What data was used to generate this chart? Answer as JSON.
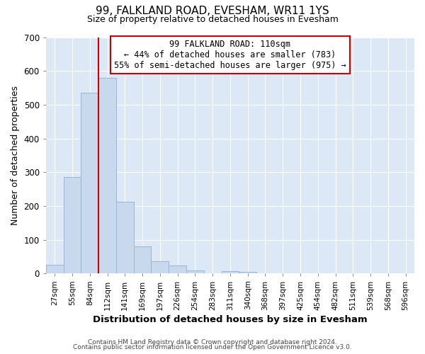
{
  "title": "99, FALKLAND ROAD, EVESHAM, WR11 1YS",
  "subtitle": "Size of property relative to detached houses in Evesham",
  "xlabel": "Distribution of detached houses by size in Evesham",
  "ylabel": "Number of detached properties",
  "bin_labels": [
    "27sqm",
    "55sqm",
    "84sqm",
    "112sqm",
    "141sqm",
    "169sqm",
    "197sqm",
    "226sqm",
    "254sqm",
    "283sqm",
    "311sqm",
    "340sqm",
    "368sqm",
    "397sqm",
    "425sqm",
    "454sqm",
    "482sqm",
    "511sqm",
    "539sqm",
    "568sqm",
    "596sqm"
  ],
  "bar_heights": [
    25,
    285,
    535,
    580,
    212,
    80,
    37,
    24,
    10,
    0,
    8,
    5,
    0,
    0,
    0,
    0,
    0,
    0,
    0,
    0,
    0
  ],
  "bar_color": "#c8d9ee",
  "bar_edge_color": "#9ab5d5",
  "vline_color": "#cc0000",
  "vline_x_index": 3,
  "annotation_title": "99 FALKLAND ROAD: 110sqm",
  "annotation_line1": "← 44% of detached houses are smaller (783)",
  "annotation_line2": "55% of semi-detached houses are larger (975) →",
  "annotation_box_color": "#ffffff",
  "annotation_box_edge": "#cc0000",
  "ylim": [
    0,
    700
  ],
  "yticks": [
    0,
    100,
    200,
    300,
    400,
    500,
    600,
    700
  ],
  "footer1": "Contains HM Land Registry data © Crown copyright and database right 2024.",
  "footer2": "Contains public sector information licensed under the Open Government Licence v3.0.",
  "background_color": "#ffffff",
  "plot_bg_color": "#dce8f5"
}
